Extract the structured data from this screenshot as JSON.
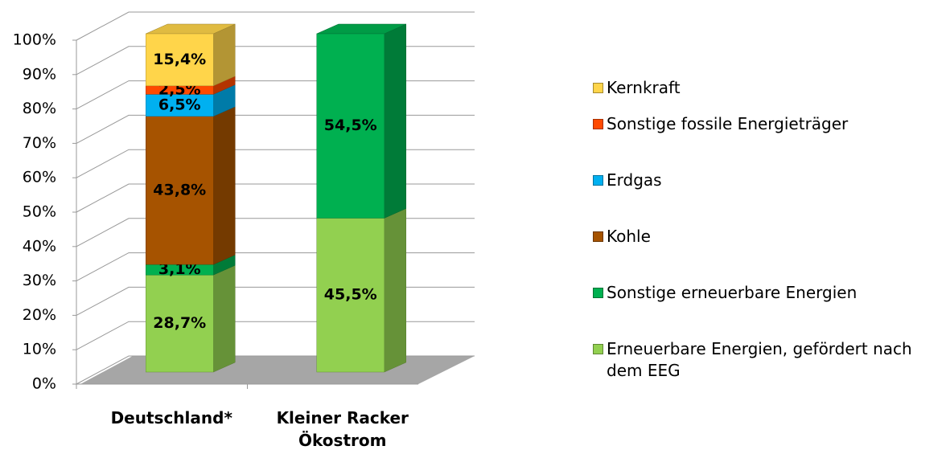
{
  "chart_data": {
    "type": "bar3d_stacked",
    "categories": [
      "Deutschland*",
      "Kleiner Racker Ökostrom"
    ],
    "series": [
      {
        "name": "Erneuerbare Energien, gefördert nach dem EEG",
        "color": "#92d050",
        "values": [
          28.7,
          45.5
        ],
        "value_labels": [
          "28,7%",
          "45,5%"
        ]
      },
      {
        "name": "Sonstige erneuerbare Energien",
        "color": "#00b050",
        "values": [
          3.1,
          54.5
        ],
        "value_labels": [
          "3,1%",
          "54,5%"
        ]
      },
      {
        "name": "Kohle",
        "color": "#a65300",
        "values": [
          43.8,
          null
        ],
        "value_labels": [
          "43,8%",
          null
        ]
      },
      {
        "name": "Erdgas",
        "color": "#00b0f0",
        "values": [
          6.5,
          null
        ],
        "value_labels": [
          "6,5%",
          null
        ]
      },
      {
        "name": "Sonstige fossile Energieträger",
        "color": "#ff4a00",
        "values": [
          2.5,
          null
        ],
        "value_labels": [
          "2,5%",
          null
        ]
      },
      {
        "name": "Kernkraft",
        "color": "#ffd54a",
        "values": [
          15.4,
          null
        ],
        "value_labels": [
          "15,4%",
          null
        ]
      }
    ],
    "ylim": [
      0,
      100
    ],
    "yticks": [
      {
        "value": 0,
        "label": "0%"
      },
      {
        "value": 10,
        "label": "10%"
      },
      {
        "value": 20,
        "label": "20%"
      },
      {
        "value": 30,
        "label": "30%"
      },
      {
        "value": 40,
        "label": "40%"
      },
      {
        "value": 50,
        "label": "50%"
      },
      {
        "value": 60,
        "label": "60%"
      },
      {
        "value": 70,
        "label": "70%"
      },
      {
        "value": 80,
        "label": "80%"
      },
      {
        "value": 90,
        "label": "90%"
      },
      {
        "value": 100,
        "label": "100%"
      }
    ],
    "grid": true,
    "legend": "right"
  }
}
